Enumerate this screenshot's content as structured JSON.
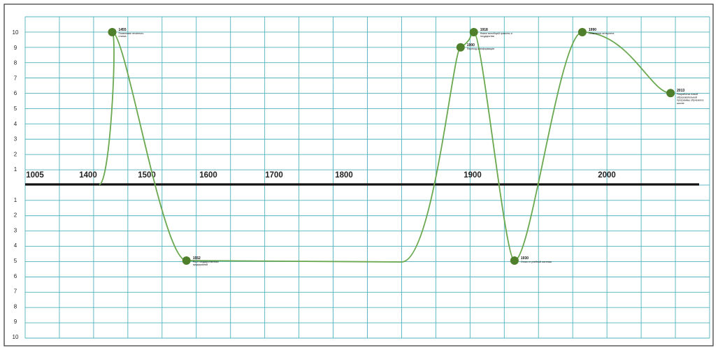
{
  "chart_data": {
    "type": "line",
    "title": "",
    "xlabel": "",
    "ylabel": "",
    "grid": true,
    "x_tick_labels": [
      "1005",
      "1400",
      "1500",
      "1600",
      "1700",
      "1800",
      "1900",
      "2000"
    ],
    "y_tick_labels_top": [
      "10",
      "9",
      "8",
      "7",
      "6",
      "5",
      "4",
      "3",
      "2",
      "1"
    ],
    "y_tick_labels_bottom": [
      "1",
      "2",
      "3",
      "4",
      "5",
      "6",
      "7",
      "8",
      "9",
      "10"
    ],
    "ylim": [
      -10,
      10
    ],
    "colors": {
      "line": "#6aa84f",
      "point": "#4f7f2a",
      "grid": "#4fb3bf",
      "axis": "#111111"
    },
    "series": [
      {
        "points": [
          {
            "x": 1445,
            "y": 10,
            "year": "1455",
            "label": "Появление печатного станка"
          },
          {
            "x": 1563,
            "y": -5,
            "year": "1552",
            "label": "Рост государственных предприятий"
          },
          {
            "x": 1895,
            "y": 9,
            "year": "1900",
            "label": "Переход к информации"
          },
          {
            "x": 1905,
            "y": 10,
            "year": "1918",
            "label": "Новое всеобщей грамоты и государства"
          },
          {
            "x": 1935,
            "y": -5,
            "year": "1930",
            "label": "Отказ от учебной системы"
          },
          {
            "x": 1985,
            "y": 10,
            "year": "1990",
            "label": "Появление интернета"
          },
          {
            "x": 2055,
            "y": 6,
            "year": "2013",
            "label": "Разработка новой образовательной программы обучения в школе"
          }
        ]
      }
    ]
  }
}
